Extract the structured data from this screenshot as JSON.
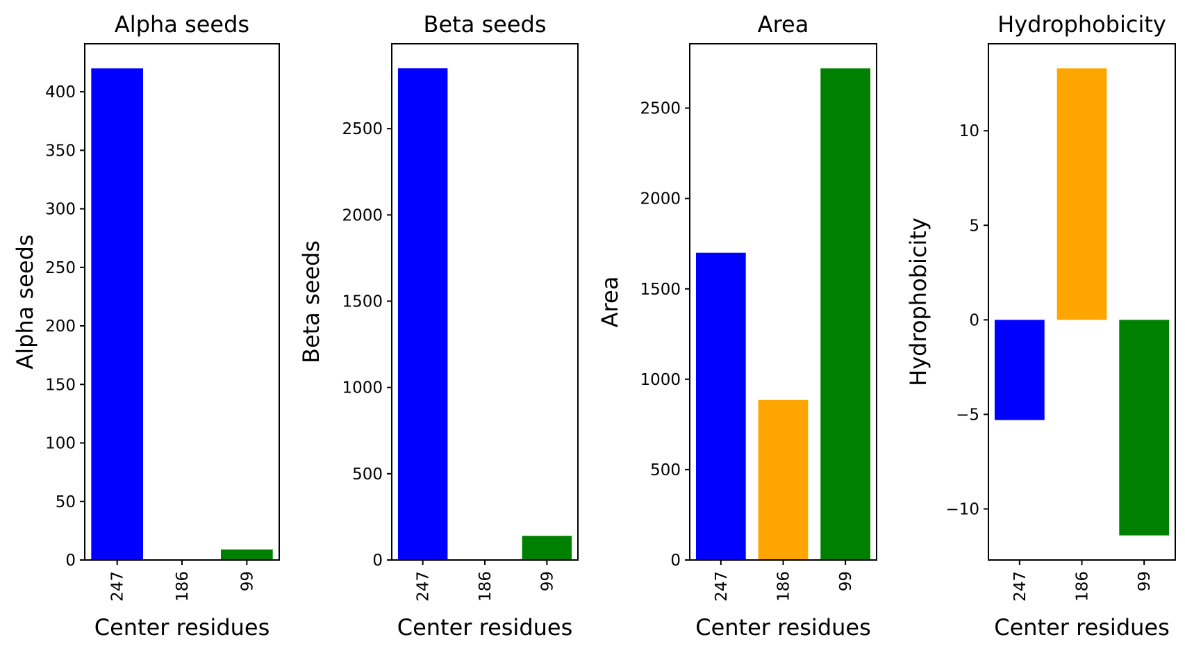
{
  "chart_data": [
    {
      "type": "bar",
      "title": "Alpha seeds",
      "xlabel": "Center residues",
      "ylabel": "Alpha seeds",
      "categories": [
        "247",
        "186",
        "99"
      ],
      "values": [
        420,
        0,
        9
      ],
      "colors": [
        "#0000ff",
        "#ffa500",
        "#008000"
      ],
      "ylim": [
        0,
        441
      ],
      "yticks": [
        0,
        50,
        100,
        150,
        200,
        250,
        300,
        350,
        400
      ],
      "ytick_labels": [
        "0",
        "50",
        "100",
        "150",
        "200",
        "250",
        "300",
        "350",
        "400"
      ],
      "grid": false,
      "legend": "none"
    },
    {
      "type": "bar",
      "title": "Beta seeds",
      "xlabel": "Center residues",
      "ylabel": "Beta seeds",
      "categories": [
        "247",
        "186",
        "99"
      ],
      "values": [
        2850,
        0,
        140
      ],
      "colors": [
        "#0000ff",
        "#ffa500",
        "#008000"
      ],
      "ylim": [
        0,
        2992
      ],
      "yticks": [
        0,
        500,
        1000,
        1500,
        2000,
        2500
      ],
      "ytick_labels": [
        "0",
        "500",
        "1000",
        "1500",
        "2000",
        "2500"
      ],
      "grid": false,
      "legend": "none"
    },
    {
      "type": "bar",
      "title": "Area",
      "xlabel": "Center residues",
      "ylabel": "Area",
      "categories": [
        "247",
        "186",
        "99"
      ],
      "values": [
        1700,
        885,
        2720
      ],
      "colors": [
        "#0000ff",
        "#ffa500",
        "#008000"
      ],
      "ylim": [
        0,
        2856
      ],
      "yticks": [
        0,
        500,
        1000,
        1500,
        2000,
        2500
      ],
      "ytick_labels": [
        "0",
        "500",
        "1000",
        "1500",
        "2000",
        "2500"
      ],
      "grid": false,
      "legend": "none"
    },
    {
      "type": "bar",
      "title": "Hydrophobicity",
      "xlabel": "Center residues",
      "ylabel": "Hydrophobicity",
      "categories": [
        "247",
        "186",
        "99"
      ],
      "values": [
        -5.3,
        13.3,
        -11.4
      ],
      "colors": [
        "#0000ff",
        "#ffa500",
        "#008000"
      ],
      "ylim": [
        -12.7,
        14.6
      ],
      "yticks": [
        -10,
        -5,
        0,
        5,
        10
      ],
      "ytick_labels": [
        "−10",
        "−5",
        "0",
        "5",
        "10"
      ],
      "grid": false,
      "legend": "none"
    }
  ]
}
